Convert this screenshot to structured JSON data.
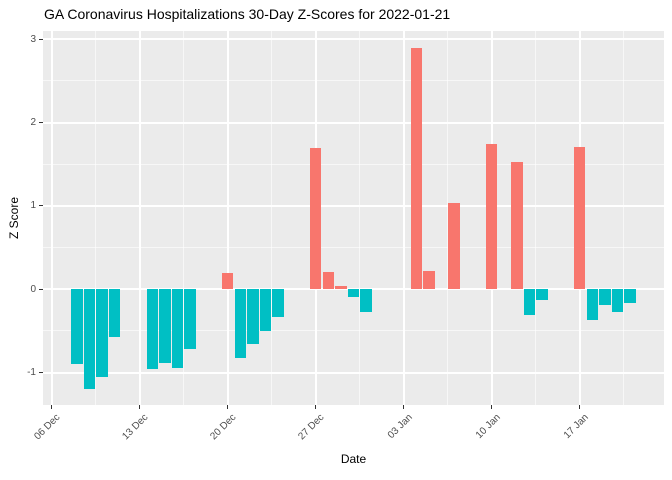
{
  "chart_data": {
    "type": "bar",
    "title": "GA Coronavirus Hospitalizations 30-Day Z-Scores for 2022-01-21",
    "xlabel": "Date",
    "ylabel": "Z Score",
    "legend_position": "none",
    "grid": true,
    "panel_bg": "#EBEBEB",
    "grid_color": "#FFFFFF",
    "tick_mark_color": "#333333",
    "axis_text_color": "#4D4D4D",
    "colors": {
      "positive": "#F8766D",
      "negative": "#00BFC4"
    },
    "x_epoch": "2021-12-06",
    "xlim_days": [
      -0.7,
      48.7
    ],
    "ylim": [
      -1.39,
      3.1
    ],
    "y_ticks": [
      -1,
      0,
      1,
      2,
      3
    ],
    "y_minor_ticks": [
      -0.5,
      0.5,
      1.5,
      2.5
    ],
    "x_ticks": [
      {
        "date": "2021-12-06",
        "label": "06 Dec"
      },
      {
        "date": "2021-12-13",
        "label": "13 Dec"
      },
      {
        "date": "2021-12-20",
        "label": "20 Dec"
      },
      {
        "date": "2021-12-27",
        "label": "27 Dec"
      },
      {
        "date": "2022-01-03",
        "label": "03 Jan"
      },
      {
        "date": "2022-01-10",
        "label": "10 Jan"
      },
      {
        "date": "2022-01-17",
        "label": "17 Jan"
      }
    ],
    "x_minor_days": [
      3.5,
      10.5,
      17.5,
      24.5,
      31.5,
      38.5,
      45.5
    ],
    "bar_width_days": 0.9,
    "points": [
      {
        "date": "2021-12-08",
        "value": -0.9
      },
      {
        "date": "2021-12-09",
        "value": -1.2
      },
      {
        "date": "2021-12-10",
        "value": -1.06
      },
      {
        "date": "2021-12-11",
        "value": -0.57
      },
      {
        "date": "2021-12-14",
        "value": -0.96
      },
      {
        "date": "2021-12-15",
        "value": -0.89
      },
      {
        "date": "2021-12-16",
        "value": -0.95
      },
      {
        "date": "2021-12-17",
        "value": -0.72
      },
      {
        "date": "2021-12-20",
        "value": 0.2
      },
      {
        "date": "2021-12-21",
        "value": -0.83
      },
      {
        "date": "2021-12-22",
        "value": -0.66
      },
      {
        "date": "2021-12-23",
        "value": -0.5
      },
      {
        "date": "2021-12-24",
        "value": -0.33
      },
      {
        "date": "2021-12-27",
        "value": 1.7
      },
      {
        "date": "2021-12-28",
        "value": 0.21
      },
      {
        "date": "2021-12-29",
        "value": 0.04
      },
      {
        "date": "2021-12-30",
        "value": -0.09
      },
      {
        "date": "2021-12-31",
        "value": -0.27
      },
      {
        "date": "2022-01-04",
        "value": 2.89
      },
      {
        "date": "2022-01-05",
        "value": 0.22
      },
      {
        "date": "2022-01-07",
        "value": 1.04
      },
      {
        "date": "2022-01-10",
        "value": 1.74
      },
      {
        "date": "2022-01-12",
        "value": 1.53
      },
      {
        "date": "2022-01-13",
        "value": -0.31
      },
      {
        "date": "2022-01-14",
        "value": -0.13
      },
      {
        "date": "2022-01-17",
        "value": 1.71
      },
      {
        "date": "2022-01-18",
        "value": -0.37
      },
      {
        "date": "2022-01-19",
        "value": -0.19
      },
      {
        "date": "2022-01-20",
        "value": -0.27
      },
      {
        "date": "2022-01-21",
        "value": -0.17
      }
    ]
  }
}
